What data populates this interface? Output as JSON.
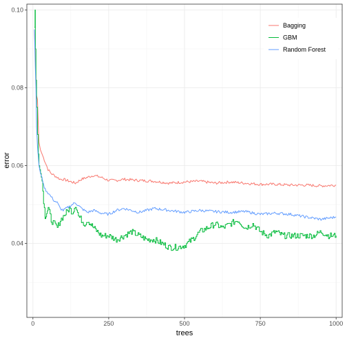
{
  "chart_data": {
    "type": "line",
    "xlabel": "trees",
    "ylabel": "error",
    "xlim": [
      -20,
      1020
    ],
    "ylim": [
      0.021,
      0.1015
    ],
    "x_ticks": [
      0,
      250,
      500,
      750,
      1000
    ],
    "x_tick_labels": [
      "0",
      "250",
      "500",
      "750",
      "1000"
    ],
    "y_ticks": [
      0.04,
      0.06,
      0.08,
      0.1
    ],
    "y_tick_labels": [
      "0.04",
      "0.06",
      "0.08",
      "0.10"
    ],
    "grid": true,
    "legend_position": "top-right",
    "series": [
      {
        "name": "Bagging",
        "color": "#F8766D",
        "x": [
          5,
          8,
          10,
          12,
          15,
          18,
          20,
          25,
          30,
          35,
          40,
          50,
          60,
          70,
          80,
          90,
          100,
          120,
          140,
          160,
          180,
          200,
          225,
          250,
          275,
          300,
          350,
          400,
          450,
          500,
          550,
          600,
          650,
          700,
          750,
          800,
          850,
          900,
          950,
          1000
        ],
        "y": [
          0.095,
          0.088,
          0.083,
          0.078,
          0.077,
          0.07,
          0.066,
          0.064,
          0.063,
          0.062,
          0.061,
          0.059,
          0.058,
          0.0575,
          0.057,
          0.0565,
          0.0565,
          0.056,
          0.0555,
          0.0565,
          0.057,
          0.0575,
          0.057,
          0.0562,
          0.0562,
          0.0565,
          0.0562,
          0.056,
          0.0555,
          0.0558,
          0.056,
          0.0555,
          0.0558,
          0.0555,
          0.0552,
          0.0552,
          0.055,
          0.055,
          0.0548,
          0.055
        ]
      },
      {
        "name": "GBM",
        "color": "#00BA38",
        "x": [
          5,
          7,
          8,
          10,
          12,
          15,
          18,
          20,
          25,
          30,
          35,
          40,
          45,
          50,
          60,
          70,
          80,
          90,
          100,
          110,
          120,
          130,
          140,
          150,
          160,
          170,
          180,
          200,
          225,
          250,
          275,
          300,
          325,
          350,
          375,
          400,
          425,
          450,
          475,
          500,
          525,
          550,
          575,
          600,
          625,
          650,
          675,
          700,
          725,
          750,
          775,
          800,
          825,
          850,
          875,
          900,
          925,
          950,
          975,
          1000
        ],
        "y": [
          0.0955,
          0.1,
          0.09,
          0.082,
          0.075,
          0.068,
          0.063,
          0.06,
          0.058,
          0.056,
          0.051,
          0.047,
          0.048,
          0.049,
          0.046,
          0.045,
          0.044,
          0.046,
          0.047,
          0.048,
          0.049,
          0.048,
          0.05,
          0.047,
          0.046,
          0.045,
          0.046,
          0.044,
          0.042,
          0.042,
          0.041,
          0.042,
          0.043,
          0.042,
          0.041,
          0.041,
          0.04,
          0.039,
          0.039,
          0.0395,
          0.041,
          0.043,
          0.044,
          0.045,
          0.044,
          0.045,
          0.046,
          0.044,
          0.045,
          0.043,
          0.042,
          0.043,
          0.042,
          0.042,
          0.042,
          0.042,
          0.042,
          0.043,
          0.042,
          0.042
        ]
      },
      {
        "name": "Random Forest",
        "color": "#619CFF",
        "x": [
          5,
          8,
          10,
          12,
          15,
          18,
          20,
          25,
          30,
          35,
          40,
          50,
          60,
          70,
          80,
          90,
          100,
          120,
          140,
          160,
          180,
          200,
          225,
          250,
          275,
          300,
          350,
          400,
          450,
          500,
          550,
          600,
          650,
          700,
          750,
          800,
          850,
          900,
          950,
          1000
        ],
        "y": [
          0.095,
          0.085,
          0.08,
          0.07,
          0.065,
          0.062,
          0.06,
          0.058,
          0.057,
          0.055,
          0.054,
          0.053,
          0.052,
          0.051,
          0.0505,
          0.049,
          0.0485,
          0.0495,
          0.0505,
          0.049,
          0.048,
          0.0485,
          0.0478,
          0.0475,
          0.0485,
          0.049,
          0.048,
          0.049,
          0.0485,
          0.048,
          0.0485,
          0.0482,
          0.048,
          0.0482,
          0.0475,
          0.0478,
          0.0475,
          0.0468,
          0.0462,
          0.0468
        ]
      }
    ]
  }
}
